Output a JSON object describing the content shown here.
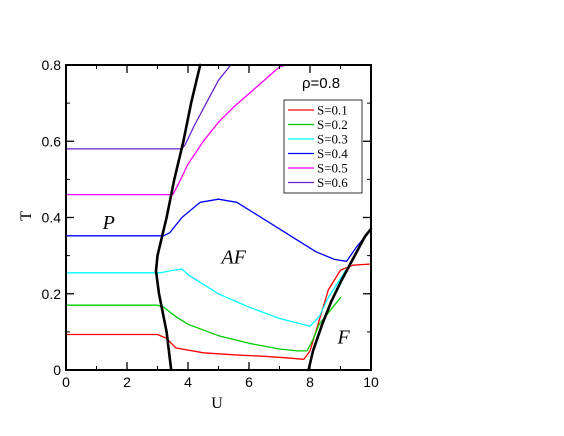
{
  "chart_data": {
    "type": "line",
    "title": "",
    "xlabel": "U",
    "ylabel": "T",
    "xlim": [
      0,
      10
    ],
    "ylim": [
      0,
      0.8
    ],
    "xticks": [
      0,
      2,
      4,
      6,
      8,
      10
    ],
    "yticks": [
      0,
      0.2,
      0.4,
      0.6,
      0.8
    ],
    "xtick_labels": [
      "0",
      "2",
      "4",
      "6",
      "8",
      "10"
    ],
    "ytick_labels": [
      "0",
      "0.2",
      "0.4",
      "0.6",
      "0.8"
    ],
    "grid": false,
    "legend_position": "top-right",
    "annotation": "ρ=0.8",
    "regions": [
      {
        "label": "P",
        "x": 1.4,
        "y": 0.37
      },
      {
        "label": "AF",
        "x": 5.5,
        "y": 0.28
      },
      {
        "label": "F",
        "x": 9.1,
        "y": 0.07
      }
    ],
    "series": [
      {
        "name": "S=0.1",
        "color": "#ff0000",
        "x": [
          0,
          3.0,
          3.3,
          3.6,
          4.5,
          5.5,
          6.5,
          7.2,
          7.8,
          8.0,
          8.3,
          8.6,
          9.0,
          9.4,
          10.0
        ],
        "y": [
          0.093,
          0.093,
          0.083,
          0.058,
          0.045,
          0.04,
          0.036,
          0.032,
          0.028,
          0.05,
          0.13,
          0.21,
          0.262,
          0.275,
          0.278
        ]
      },
      {
        "name": "S=0.2",
        "color": "#00cc00",
        "x": [
          0,
          3.0,
          3.2,
          3.6,
          4.0,
          5.0,
          6.0,
          7.0,
          7.6,
          7.9,
          8.1,
          8.3,
          8.6,
          9.0
        ],
        "y": [
          0.17,
          0.17,
          0.165,
          0.14,
          0.12,
          0.09,
          0.07,
          0.055,
          0.05,
          0.05,
          0.08,
          0.12,
          0.15,
          0.19
        ]
      },
      {
        "name": "S=0.3",
        "color": "#00ffff",
        "x": [
          0,
          3.1,
          3.4,
          3.8,
          4.0,
          5.0,
          6.0,
          7.0,
          8.0,
          8.3,
          8.6,
          9.0,
          9.4
        ],
        "y": [
          0.255,
          0.255,
          0.26,
          0.265,
          0.25,
          0.2,
          0.165,
          0.135,
          0.115,
          0.14,
          0.19,
          0.24,
          0.29
        ]
      },
      {
        "name": "S=0.4",
        "color": "#0000ff",
        "x": [
          0,
          3.2,
          3.4,
          3.8,
          4.4,
          5.0,
          5.6,
          6.2,
          7.0,
          7.6,
          8.2,
          8.8,
          9.2,
          9.5,
          9.8,
          10.0
        ],
        "y": [
          0.352,
          0.352,
          0.36,
          0.4,
          0.44,
          0.448,
          0.44,
          0.41,
          0.37,
          0.34,
          0.31,
          0.29,
          0.285,
          0.32,
          0.35,
          0.37
        ]
      },
      {
        "name": "S=0.5",
        "color": "#ff00ff",
        "x": [
          0,
          3.5,
          3.7,
          4.0,
          4.5,
          5.0,
          5.5,
          6.0,
          6.5,
          7.0,
          7.2
        ],
        "y": [
          0.46,
          0.46,
          0.49,
          0.54,
          0.6,
          0.65,
          0.69,
          0.725,
          0.76,
          0.795,
          0.8
        ]
      },
      {
        "name": "S=0.6",
        "color": "#6622cc",
        "x": [
          0,
          3.8,
          3.9,
          4.2,
          4.6,
          5.0,
          5.4
        ],
        "y": [
          0.58,
          0.58,
          0.59,
          0.64,
          0.7,
          0.76,
          0.8
        ]
      },
      {
        "name": "",
        "color": "#000000",
        "x": [
          3.45,
          3.3,
          3.05,
          2.95,
          3.0,
          3.3,
          3.55,
          3.85,
          4.1,
          4.4
        ],
        "y": [
          0.0,
          0.1,
          0.2,
          0.26,
          0.3,
          0.4,
          0.5,
          0.6,
          0.7,
          0.8
        ]
      },
      {
        "name": "",
        "color": "#000000",
        "x": [
          7.95,
          8.1,
          8.4,
          8.7,
          9.0,
          9.4,
          9.8,
          10.0
        ],
        "y": [
          0.0,
          0.05,
          0.12,
          0.18,
          0.23,
          0.29,
          0.35,
          0.37
        ]
      }
    ]
  }
}
